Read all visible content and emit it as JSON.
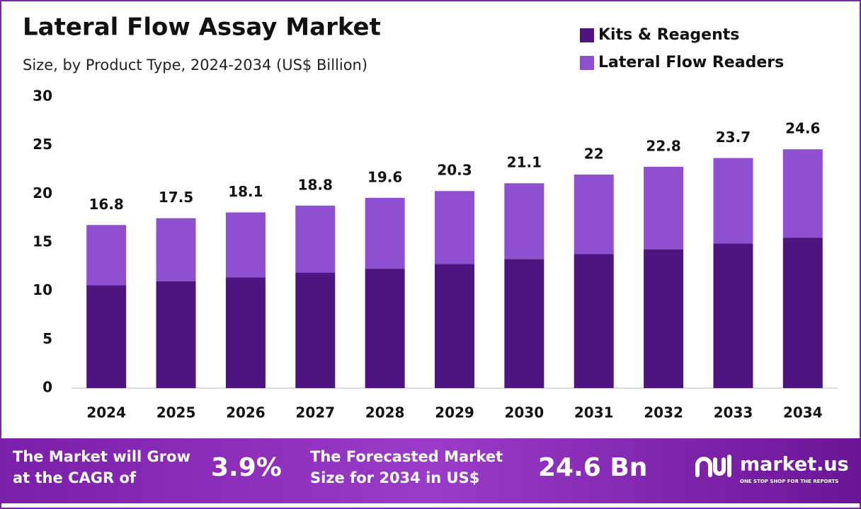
{
  "chart_data": {
    "type": "stacked-bar",
    "title": "Lateral Flow Assay Market",
    "subtitle": "Size, by Product Type, 2024-2034 (US$ Billion)",
    "categories": [
      "2024",
      "2025",
      "2026",
      "2027",
      "2028",
      "2029",
      "2030",
      "2031",
      "2032",
      "2033",
      "2034"
    ],
    "series": [
      {
        "name": "Kits & Reagents",
        "color": "#4e1580",
        "values": [
          10.6,
          11.0,
          11.4,
          11.9,
          12.3,
          12.8,
          13.3,
          13.8,
          14.3,
          14.9,
          15.5
        ]
      },
      {
        "name": "Lateral Flow Readers",
        "color": "#8e4fd1",
        "values": [
          6.2,
          6.5,
          6.7,
          6.9,
          7.3,
          7.5,
          7.8,
          8.2,
          8.5,
          8.8,
          9.1
        ]
      }
    ],
    "totals": [
      16.8,
      17.5,
      18.1,
      18.8,
      19.6,
      20.3,
      21.1,
      22.0,
      22.8,
      23.7,
      24.6
    ],
    "ylim": [
      0,
      30
    ],
    "yticks": [
      0,
      5,
      10,
      15,
      20,
      25,
      30
    ],
    "grid": false,
    "legend": "top-right"
  },
  "footer": {
    "cagr_text": [
      "The Market will Grow",
      "at the CAGR of"
    ],
    "cagr_value": "3.9%",
    "forecast_text": [
      "The Forecasted Market",
      "Size for 2034 in US$"
    ],
    "forecast_value": "24.6 Bn",
    "brand": "market.us",
    "tagline": "ONE STOP SHOP FOR THE REPORTS"
  }
}
